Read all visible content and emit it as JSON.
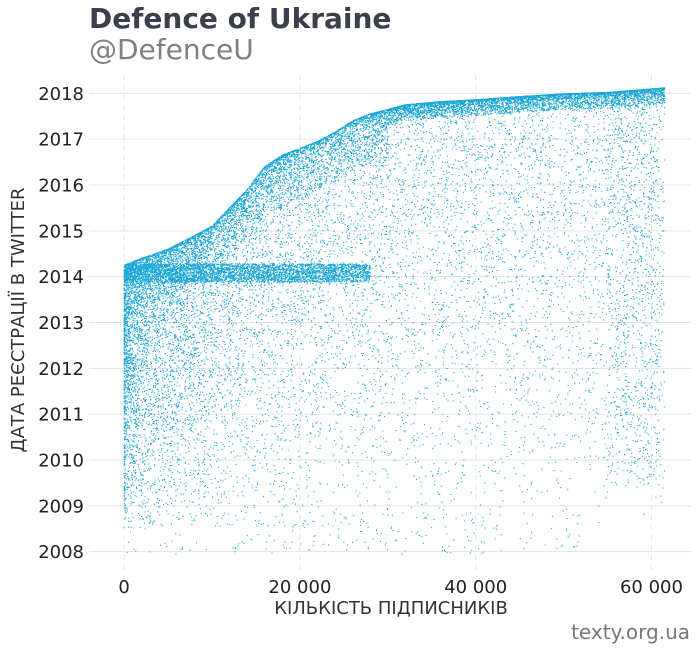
{
  "header": {
    "title": "Defence of Ukraine",
    "subtitle": "@DefenceU"
  },
  "footer": {
    "source": "texty.org.ua"
  },
  "chart_data": {
    "type": "scatter",
    "xlabel": "КІЛЬКІСТЬ ПІДПИСНИКІВ",
    "ylabel": "ДАТА РЕЄСТРАЦІЇ В TWITTER",
    "xlim": [
      -4000,
      64500
    ],
    "ylim": [
      2007.6,
      2018.4
    ],
    "x_ticks": [
      0,
      20000,
      40000,
      60000
    ],
    "x_tick_labels": [
      "0",
      "20 000",
      "40 000",
      "60 000"
    ],
    "y_ticks": [
      2008,
      2009,
      2010,
      2011,
      2012,
      2013,
      2014,
      2015,
      2016,
      2017,
      2018
    ],
    "y_tick_labels": [
      "2008",
      "2009",
      "2010",
      "2011",
      "2012",
      "2013",
      "2014",
      "2015",
      "2016",
      "2017",
      "2018"
    ],
    "grid": true,
    "point_color": "#1aa6d6",
    "series": [
      {
        "upper_envelope": [
          [
            0,
            2014.25
          ],
          [
            2000,
            2014.4
          ],
          [
            5000,
            2014.6
          ],
          [
            8000,
            2014.9
          ],
          [
            10000,
            2015.1
          ],
          [
            12000,
            2015.5
          ],
          [
            14000,
            2015.9
          ],
          [
            16000,
            2016.4
          ],
          [
            18000,
            2016.65
          ],
          [
            20000,
            2016.8
          ],
          [
            22000,
            2016.95
          ],
          [
            24000,
            2017.15
          ],
          [
            26000,
            2017.4
          ],
          [
            28000,
            2017.55
          ],
          [
            30000,
            2017.65
          ],
          [
            32000,
            2017.75
          ],
          [
            36000,
            2017.82
          ],
          [
            40000,
            2017.86
          ],
          [
            45000,
            2017.93
          ],
          [
            50000,
            2017.99
          ],
          [
            55000,
            2018.02
          ],
          [
            61500,
            2018.12
          ]
        ],
        "followers_max": 61500,
        "registration_min": 2008.3
      }
    ]
  }
}
